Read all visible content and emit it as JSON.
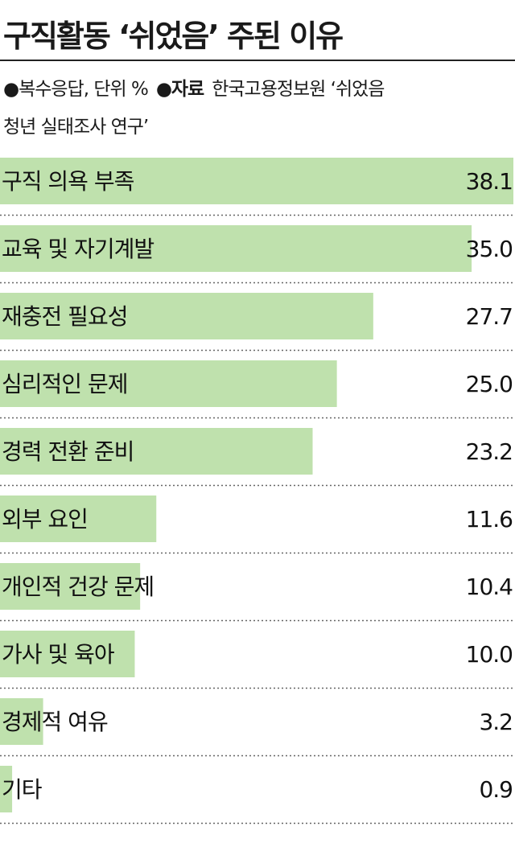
{
  "header": {
    "title": "구직활동 ‘쉬었음’ 주된 이유",
    "note_line1_prefix": "●복수응답, 단위 %",
    "note_source_label": "●자료",
    "note_source_text_1": "한국고용정보원 ‘쉬었음",
    "note_source_text_2": "청년 실태조사 연구’"
  },
  "colors": {
    "bar": "#bfe1ad",
    "text": "#111111",
    "divider": "#666666"
  },
  "chart_data": {
    "type": "bar",
    "orientation": "horizontal",
    "categories": [
      "구직 의욕 부족",
      "교육 및 자기계발",
      "재충전 필요성",
      "심리적인 문제",
      "경력 전환 준비",
      "외부 요인",
      "개인적 건강 문제",
      "가사 및 육아",
      "경제적 여유",
      "기타"
    ],
    "values": [
      38.1,
      35.0,
      27.7,
      25.0,
      23.2,
      11.6,
      10.4,
      10.0,
      3.2,
      0.9
    ],
    "value_labels": [
      "38.1",
      "35.0",
      "27.7",
      "25.0",
      "23.2",
      "11.6",
      "10.4",
      "10.0",
      "3.2",
      "0.9"
    ],
    "unit": "%",
    "xlim": [
      0,
      38.1
    ]
  }
}
